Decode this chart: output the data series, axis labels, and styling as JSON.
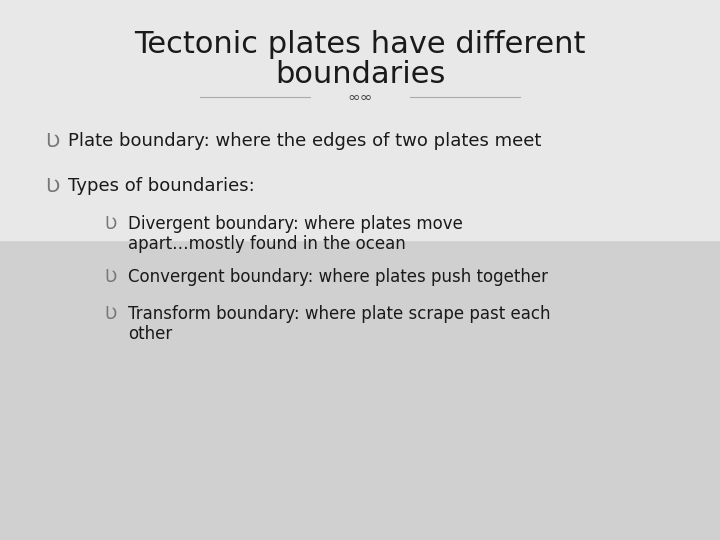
{
  "title_line1": "Tectonic plates have different",
  "title_line2": "boundaries",
  "background_color": "#e8e8e8",
  "text_color": "#1a1a1a",
  "bullet1": "Plate boundary: where the edges of two plates meet",
  "bullet2_main": "Types of boundaries:",
  "bullet2_sub1_line1": "Divergent boundary: where plates move",
  "bullet2_sub1_line2": "apart…mostly found in the ocean",
  "bullet2_sub2": "Convergent boundary: where plates push together",
  "bullet2_sub3_line1": "Transform boundary: where plate scrape past each",
  "bullet2_sub3_line2": "other",
  "title_fontsize": 22,
  "body_fontsize": 13,
  "sub_fontsize": 12,
  "bullet_color": "#777777",
  "divider_color": "#888888",
  "line_color": "#aaaaaa"
}
